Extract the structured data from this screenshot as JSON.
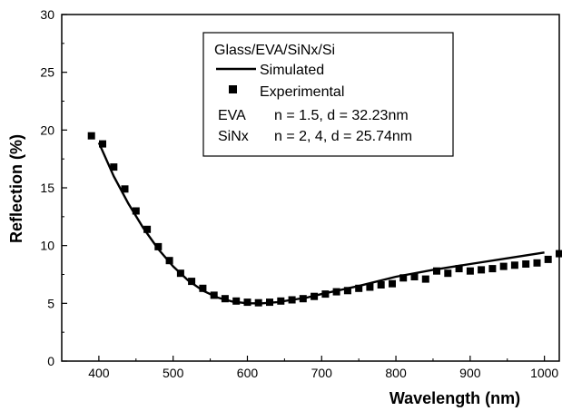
{
  "chart_data": {
    "type": "line",
    "xlabel": "Wavelength (nm)",
    "ylabel": "Reflection (%)",
    "xlim": [
      350,
      1020
    ],
    "ylim": [
      0,
      30
    ],
    "x_ticks": [
      400,
      500,
      600,
      700,
      800,
      900,
      1000
    ],
    "y_ticks": [
      0,
      5,
      10,
      15,
      20,
      25,
      30
    ],
    "grid": false,
    "legend_position": "top-center",
    "legend_title": "Glass/EVA/SiNx/Si",
    "annotations": [
      {
        "material": "EVA",
        "params": "n = 1.5, d = 32.23nm"
      },
      {
        "material": "SiNx",
        "params": "n = 2, 4, d = 25.74nm"
      }
    ],
    "series": [
      {
        "name": "Simulated",
        "style": "line",
        "color": "#000000",
        "x": [
          400,
          420,
          440,
          460,
          480,
          500,
          520,
          540,
          560,
          580,
          600,
          620,
          640,
          660,
          680,
          700,
          750,
          800,
          850,
          900,
          950,
          1000
        ],
        "y": [
          18.9,
          16.0,
          13.6,
          11.5,
          9.7,
          8.2,
          7.0,
          6.1,
          5.5,
          5.15,
          5.0,
          5.0,
          5.1,
          5.3,
          5.5,
          5.8,
          6.5,
          7.3,
          7.9,
          8.4,
          8.9,
          9.4
        ]
      },
      {
        "name": "Experimental",
        "style": "square-markers",
        "color": "#000000",
        "x": [
          390,
          405,
          420,
          435,
          450,
          465,
          480,
          495,
          510,
          525,
          540,
          555,
          570,
          585,
          600,
          615,
          630,
          645,
          660,
          675,
          690,
          705,
          720,
          735,
          750,
          765,
          780,
          795,
          810,
          825,
          840,
          855,
          870,
          885,
          900,
          915,
          930,
          945,
          960,
          975,
          990,
          1005,
          1020
        ],
        "y": [
          19.5,
          18.8,
          16.8,
          14.9,
          13.0,
          11.4,
          9.9,
          8.7,
          7.6,
          6.9,
          6.3,
          5.7,
          5.4,
          5.2,
          5.1,
          5.05,
          5.1,
          5.2,
          5.3,
          5.4,
          5.6,
          5.8,
          6.0,
          6.1,
          6.3,
          6.4,
          6.6,
          6.7,
          7.2,
          7.3,
          7.1,
          7.8,
          7.6,
          8.0,
          7.8,
          7.9,
          8.0,
          8.2,
          8.3,
          8.4,
          8.5,
          8.8,
          9.3
        ]
      }
    ]
  }
}
